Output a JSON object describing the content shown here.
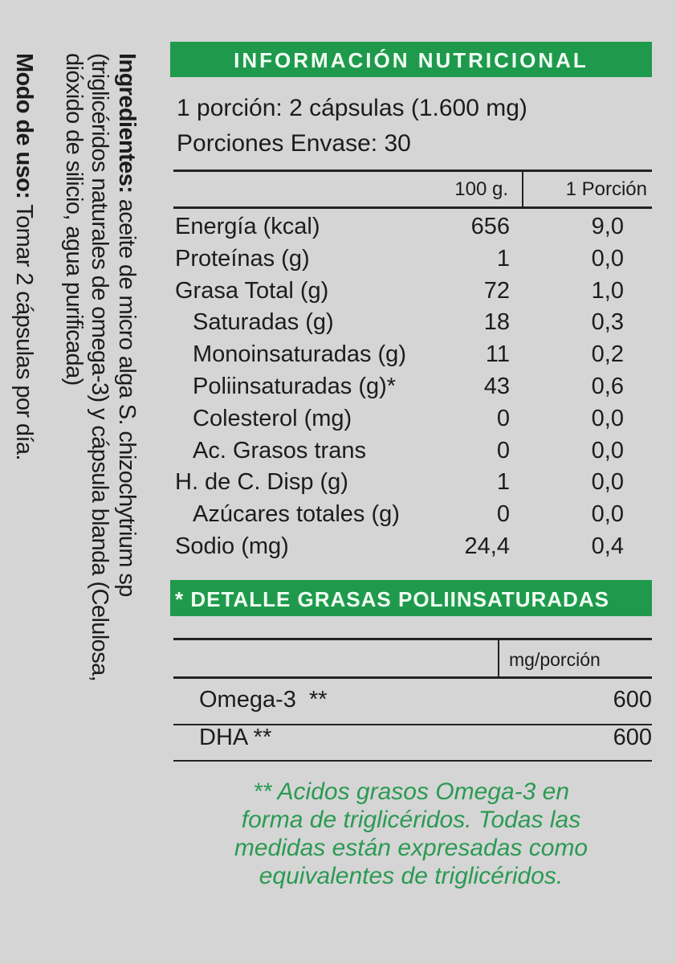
{
  "side": {
    "ingredients_label": "Ingredientes:",
    "ingredients_lines": [
      " aceite de micro alga S. chizochytrium sp",
      "(triglicéridos naturales de omega-3) y cápsula blanda (Celulosa,",
      "dióxido de silicio, agua purificada)"
    ],
    "usage_label": "Modo de uso:",
    "usage_text": " Tomar 2 cápsulas por día."
  },
  "title": "INFORMACIÓN NUTRICIONAL",
  "serving": {
    "portion": "1 porción: 2 cápsulas (1.600 mg)",
    "per_container": "Porciones Envase: 30"
  },
  "table": {
    "headers": [
      "100 g.",
      "1 Porción"
    ],
    "rows": [
      {
        "label": "Energía (kcal)",
        "v100": "656",
        "vpor": "9,0",
        "indent": false
      },
      {
        "label": "Proteínas (g)",
        "v100": "1",
        "vpor": "0,0",
        "indent": false
      },
      {
        "label": "Grasa Total (g)",
        "v100": "72",
        "vpor": "1,0",
        "indent": false
      },
      {
        "label": "Saturadas (g)",
        "v100": "18",
        "vpor": "0,3",
        "indent": true
      },
      {
        "label": "Monoinsaturadas (g)",
        "v100": "11",
        "vpor": "0,2",
        "indent": true
      },
      {
        "label": "Poliinsaturadas (g)*",
        "v100": "43",
        "vpor": "0,6",
        "indent": true
      },
      {
        "label": "Colesterol (mg)",
        "v100": "0",
        "vpor": "0,0",
        "indent": true
      },
      {
        "label": "Ac. Grasos trans",
        "v100": "0",
        "vpor": "0,0",
        "indent": true
      },
      {
        "label": "H. de C. Disp (g)",
        "v100": "1",
        "vpor": "0,0",
        "indent": false
      },
      {
        "label": "Azúcares totales (g)",
        "v100": "0",
        "vpor": "0,0",
        "indent": true
      },
      {
        "label": "Sodio (mg)",
        "v100": "24,4",
        "vpor": "0,4",
        "indent": false
      }
    ]
  },
  "poly": {
    "title": "* DETALLE GRASAS POLIINSATURADAS",
    "header": "mg/porción",
    "rows": [
      {
        "label": "Omega-3  **",
        "value": "600"
      },
      {
        "label": "DHA **",
        "value": "600"
      }
    ],
    "footnote": [
      "** Acidos grasos Omega-3 en",
      "forma de triglicéridos. Todas las",
      "medidas están expresadas como",
      "equivalentes de triglicéridos."
    ]
  },
  "colors": {
    "brand_green": "#1f9a4c",
    "footnote_green": "#2a9a52",
    "background": "#d5d5d5"
  }
}
